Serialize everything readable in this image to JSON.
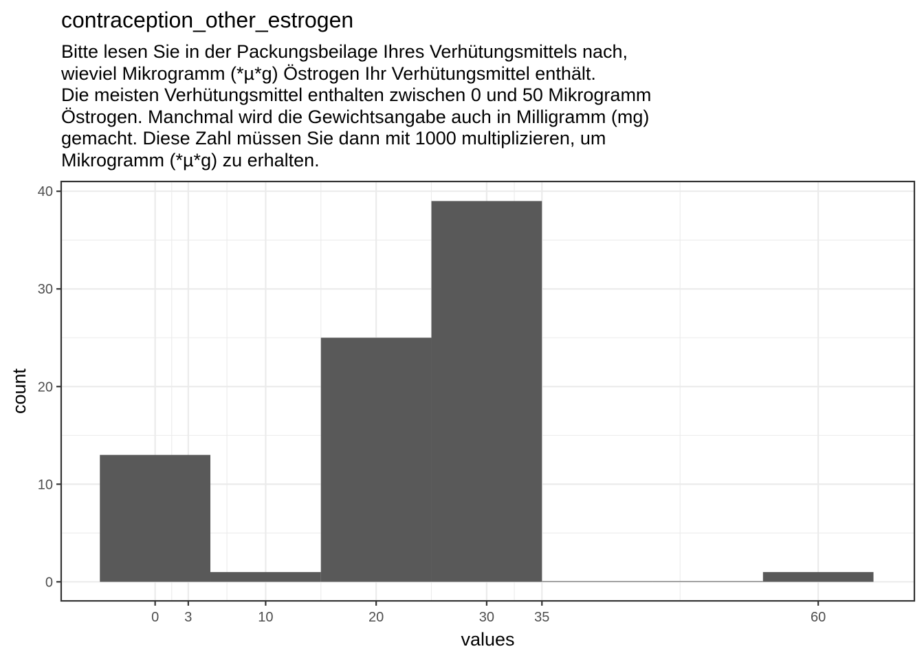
{
  "chart_data": {
    "type": "bar",
    "title": "contraception_other_estrogen",
    "subtitle_lines": [
      "Bitte lesen Sie in der Packungsbeilage Ihres Verhütungsmittels nach,",
      "wieviel Mikrogramm (*µ*g) Östrogen Ihr Verhütungsmittel enthält.",
      "Die meisten Verhütungsmittel enthalten zwischen 0 und 50 Mikrogramm",
      "Östrogen. Manchmal wird die Gewichtsangabe auch in Milligramm (mg)",
      "gemacht. Diese Zahl müssen Sie dann mit 1000 multiplizieren, um",
      "Mikrogramm (*µ*g) zu erhalten."
    ],
    "xlabel": "values",
    "ylabel": "count",
    "x_ticks": [
      0,
      3,
      10,
      20,
      30,
      35,
      60
    ],
    "y_ticks": [
      0,
      10,
      20,
      30,
      40
    ],
    "xlim": [
      -8.5,
      68.7
    ],
    "ylim": [
      -1.95,
      41.0
    ],
    "bins": [
      {
        "x0": -5,
        "x1": 5,
        "count": 13
      },
      {
        "x0": 5,
        "x1": 15,
        "count": 1
      },
      {
        "x0": 15,
        "x1": 25,
        "count": 25
      },
      {
        "x0": 25,
        "x1": 35,
        "count": 39
      },
      {
        "x0": 35,
        "x1": 45,
        "count": 0
      },
      {
        "x0": 45,
        "x1": 55,
        "count": 0
      },
      {
        "x0": 55,
        "x1": 65,
        "count": 1
      }
    ],
    "grid": true,
    "bar_color": "#595959",
    "grid_color": "#ebebeb",
    "panel_border_color": "#333333"
  }
}
